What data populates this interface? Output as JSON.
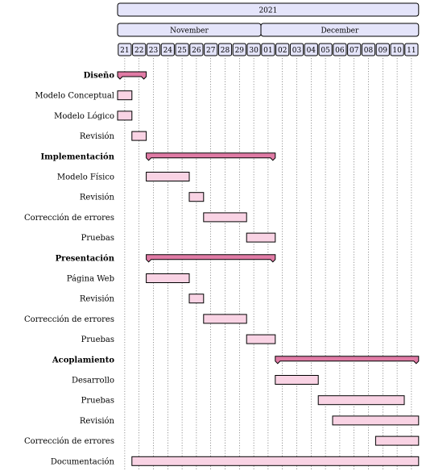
{
  "chart_data": {
    "type": "gantt",
    "year": "2021",
    "months": [
      {
        "label": "November",
        "days": [
          "21",
          "22",
          "23",
          "24",
          "25",
          "26",
          "27",
          "28",
          "29",
          "30"
        ]
      },
      {
        "label": "December",
        "days": [
          "01",
          "02",
          "03",
          "04",
          "05",
          "06",
          "07",
          "08",
          "09",
          "10",
          "11"
        ]
      }
    ],
    "rows": [
      {
        "label": "Diseño",
        "kind": "group",
        "start": 0,
        "end": 2
      },
      {
        "label": "Modelo Conceptual",
        "kind": "task",
        "start": 0,
        "end": 1
      },
      {
        "label": "Modelo Lógico",
        "kind": "task",
        "start": 0,
        "end": 1
      },
      {
        "label": "Revisión",
        "kind": "task",
        "start": 1,
        "end": 2
      },
      {
        "label": "Implementación",
        "kind": "group",
        "start": 2,
        "end": 11
      },
      {
        "label": "Modelo Físico",
        "kind": "task",
        "start": 2,
        "end": 5
      },
      {
        "label": "Revisión",
        "kind": "task",
        "start": 5,
        "end": 6
      },
      {
        "label": "Corrección de errores",
        "kind": "task",
        "start": 6,
        "end": 9
      },
      {
        "label": "Pruebas",
        "kind": "task",
        "start": 9,
        "end": 11
      },
      {
        "label": "Presentación",
        "kind": "group",
        "start": 2,
        "end": 11
      },
      {
        "label": "Página Web",
        "kind": "task",
        "start": 2,
        "end": 5
      },
      {
        "label": "Revisión",
        "kind": "task",
        "start": 5,
        "end": 6
      },
      {
        "label": "Corrección de errores",
        "kind": "task",
        "start": 6,
        "end": 9
      },
      {
        "label": "Pruebas",
        "kind": "task",
        "start": 9,
        "end": 11
      },
      {
        "label": "Acoplamiento",
        "kind": "group",
        "start": 11,
        "end": 21
      },
      {
        "label": "Desarrollo",
        "kind": "task",
        "start": 11,
        "end": 14
      },
      {
        "label": "Pruebas",
        "kind": "task",
        "start": 14,
        "end": 20
      },
      {
        "label": "Revisión",
        "kind": "task",
        "start": 15,
        "end": 21
      },
      {
        "label": "Corrección de errores",
        "kind": "task",
        "start": 18,
        "end": 21
      },
      {
        "label": "Documentación",
        "kind": "task",
        "start": 1,
        "end": 21
      }
    ],
    "colors": {
      "header_fill": "#e4e4fa",
      "task_fill": "#f9d3e4",
      "group_fill": "#e07ba5"
    }
  }
}
